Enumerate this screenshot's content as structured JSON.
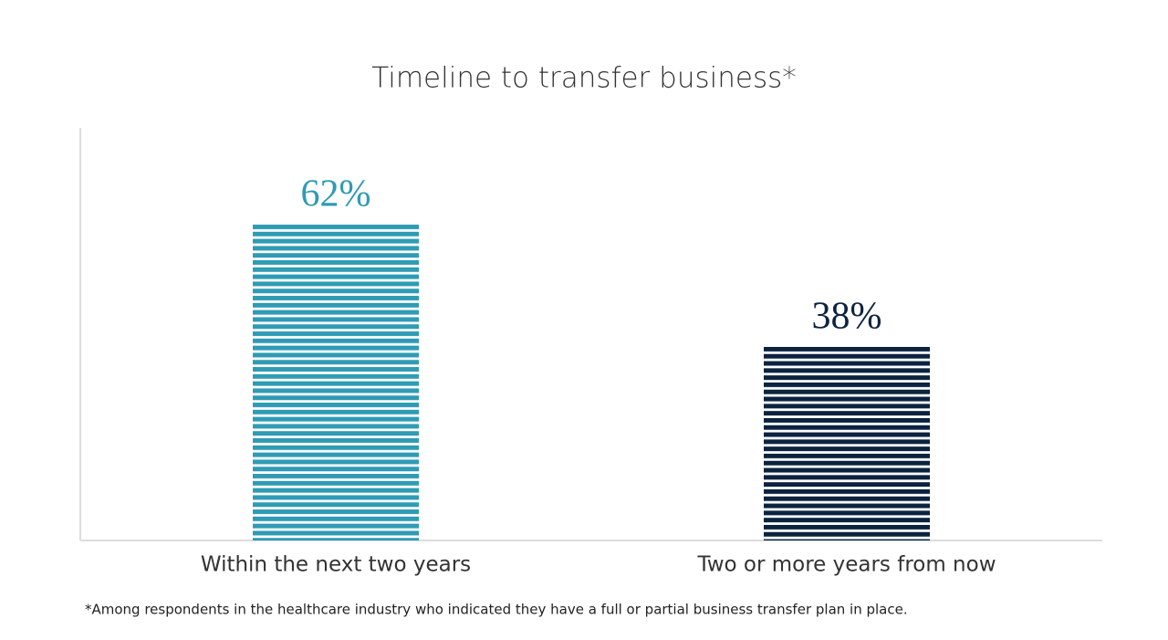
{
  "chart_data": {
    "type": "bar",
    "title": "Timeline to transfer business*",
    "categories": [
      "Within the next two years",
      "Two or more years from now"
    ],
    "values": [
      62,
      38
    ],
    "value_labels": [
      "62%",
      "38%"
    ],
    "colors": [
      "#2f9bb5",
      "#0c2340"
    ],
    "footnote": "*Among respondents in the healthcare industry who indicated they have a full or partial business transfer plan in place."
  }
}
